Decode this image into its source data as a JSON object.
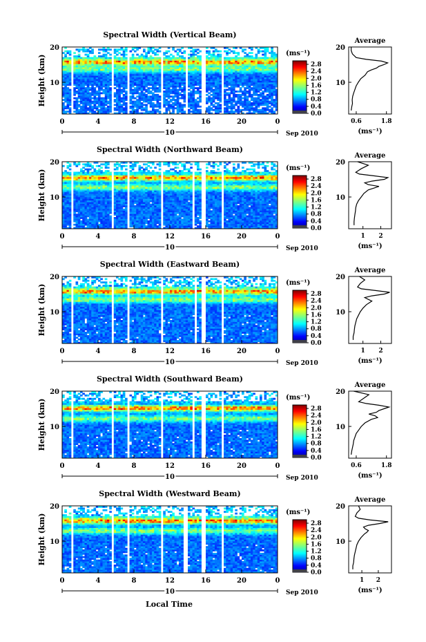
{
  "chart_data": [
    {
      "type": "heatmap",
      "title": "Spectral Width (Vertical Beam)",
      "xlabel": "",
      "ylabel": "Height (km)",
      "xlim": [
        0,
        24
      ],
      "ylim": [
        1,
        20
      ],
      "x_ticks": [
        "0",
        "4",
        "8",
        "12",
        "16",
        "20",
        "0"
      ],
      "y_ticks": [
        "20",
        "10"
      ],
      "date_day": "10",
      "date_label": "Sep 2010",
      "colorbar": {
        "unit": "(ms⁻¹)",
        "range": [
          0,
          3.0
        ],
        "ticks": [
          "2.8",
          "2.4",
          "2.0",
          "1.6",
          "1.2",
          "0.8",
          "0.4",
          "0.0"
        ]
      },
      "gaps_hours": [
        [
          1.0,
          1.3
        ],
        [
          5.5,
          5.8
        ],
        [
          7.3,
          7.6
        ],
        [
          10.9,
          11.2
        ],
        [
          13.7,
          14.0
        ],
        [
          15.6,
          15.9
        ],
        [
          17.7,
          18.0
        ]
      ],
      "band_heights_km": [
        15.8,
        13.8
      ],
      "profile": {
        "title": "Average",
        "xlabel": "(ms⁻¹)",
        "x_ticks": [
          "0.6",
          "1.8"
        ],
        "xlim": [
          0.3,
          2.0
        ],
        "heights": [
          2,
          3,
          4,
          5,
          6,
          7,
          8,
          9,
          10,
          11,
          12,
          12.5,
          13,
          13.5,
          14,
          14.5,
          15,
          15.5,
          16,
          16.5,
          17,
          18,
          19,
          20
        ],
        "values": [
          0.4,
          0.42,
          0.45,
          0.44,
          0.46,
          0.5,
          0.55,
          0.6,
          0.68,
          0.78,
          0.95,
          1.0,
          1.05,
          1.2,
          1.4,
          1.5,
          1.7,
          1.85,
          1.6,
          1.0,
          0.6,
          0.45,
          0.4,
          0.4
        ]
      }
    },
    {
      "type": "heatmap",
      "title": "Spectral Width (Northward Beam)",
      "xlabel": "",
      "ylabel": "Height (km)",
      "xlim": [
        0,
        24
      ],
      "ylim": [
        1,
        20
      ],
      "x_ticks": [
        "0",
        "4",
        "8",
        "12",
        "16",
        "20",
        "0"
      ],
      "y_ticks": [
        "20",
        "10"
      ],
      "date_day": "10",
      "date_label": "Sep 2010",
      "colorbar": {
        "unit": "(ms⁻¹)",
        "range": [
          0,
          3.0
        ],
        "ticks": [
          "2.8",
          "2.4",
          "2.0",
          "1.6",
          "1.2",
          "0.8",
          "0.4",
          "0.0"
        ]
      },
      "gaps_hours": [
        [
          1.0,
          1.3
        ],
        [
          5.5,
          5.8
        ],
        [
          7.3,
          7.6
        ],
        [
          10.9,
          11.2
        ],
        [
          14.4,
          14.7
        ],
        [
          15.6,
          15.9
        ],
        [
          17.7,
          18.0
        ]
      ],
      "band_heights_km": [
        15.5,
        12.8
      ],
      "profile": {
        "title": "Average",
        "xlabel": "(ms⁻¹)",
        "x_ticks": [
          "1",
          "2"
        ],
        "xlim": [
          0.2,
          2.6
        ],
        "heights": [
          2,
          3,
          4,
          5,
          6,
          7,
          8,
          9,
          10,
          11,
          12,
          12.5,
          13,
          13.5,
          14,
          14.5,
          15,
          15.5,
          16,
          16.5,
          17,
          18,
          19,
          20
        ],
        "values": [
          0.5,
          0.5,
          0.52,
          0.55,
          0.58,
          0.6,
          0.65,
          0.75,
          0.9,
          1.05,
          1.3,
          1.6,
          1.9,
          1.3,
          1.1,
          1.5,
          2.2,
          2.4,
          1.6,
          0.8,
          0.6,
          0.9,
          1.3,
          0.7
        ]
      }
    },
    {
      "type": "heatmap",
      "title": "Spectral Width (Eastward Beam)",
      "xlabel": "",
      "ylabel": "Height (km)",
      "xlim": [
        0,
        24
      ],
      "ylim": [
        1,
        20
      ],
      "x_ticks": [
        "0",
        "4",
        "8",
        "12",
        "16",
        "20",
        "0"
      ],
      "y_ticks": [
        "20",
        "10"
      ],
      "date_day": "10",
      "date_label": "Sep 2010",
      "colorbar": {
        "unit": "(ms⁻¹)",
        "range": [
          0,
          3.0
        ],
        "ticks": [
          "2.8",
          "2.4",
          "2.0",
          "1.6",
          "1.2",
          "0.8",
          "0.4",
          "0.0"
        ]
      },
      "gaps_hours": [
        [
          1.0,
          1.3
        ],
        [
          5.5,
          5.8
        ],
        [
          7.3,
          7.6
        ],
        [
          10.9,
          11.2
        ],
        [
          14.7,
          15.0
        ],
        [
          15.6,
          15.9
        ],
        [
          17.7,
          18.0
        ]
      ],
      "band_heights_km": [
        15.8,
        13.5
      ],
      "profile": {
        "title": "Average",
        "xlabel": "(ms⁻¹)",
        "x_ticks": [
          "1",
          "2"
        ],
        "xlim": [
          0.2,
          2.6
        ],
        "heights": [
          2,
          3,
          4,
          5,
          6,
          7,
          8,
          9,
          10,
          11,
          12,
          12.5,
          13,
          13.5,
          14,
          14.5,
          15,
          15.5,
          16,
          16.5,
          17,
          18,
          19,
          20
        ],
        "values": [
          0.45,
          0.45,
          0.5,
          0.52,
          0.55,
          0.6,
          0.65,
          0.75,
          0.85,
          1.0,
          1.2,
          1.35,
          1.5,
          1.3,
          1.1,
          1.5,
          2.2,
          2.5,
          1.7,
          0.9,
          0.7,
          0.85,
          1.1,
          0.8
        ]
      }
    },
    {
      "type": "heatmap",
      "title": "Spectral Width (Southward Beam)",
      "xlabel": "",
      "ylabel": "Height (km)",
      "xlim": [
        0,
        24
      ],
      "ylim": [
        1,
        20
      ],
      "x_ticks": [
        "0",
        "4",
        "8",
        "12",
        "16",
        "20",
        "0"
      ],
      "y_ticks": [
        "20",
        "10"
      ],
      "date_day": "10",
      "date_label": "Sep 2010",
      "colorbar": {
        "unit": "(ms⁻¹)",
        "range": [
          0,
          3.0
        ],
        "ticks": [
          "2.8",
          "2.4",
          "2.0",
          "1.6",
          "1.2",
          "0.8",
          "0.4",
          "0.0"
        ]
      },
      "gaps_hours": [
        [
          1.0,
          1.3
        ],
        [
          5.5,
          5.8
        ],
        [
          7.3,
          7.6
        ],
        [
          10.9,
          11.2
        ],
        [
          14.4,
          14.7
        ],
        [
          15.6,
          15.9
        ],
        [
          17.7,
          18.0
        ]
      ],
      "band_heights_km": [
        15.2,
        12.3
      ],
      "profile": {
        "title": "Average",
        "xlabel": "(ms⁻¹)",
        "x_ticks": [
          "0.6",
          "1.8"
        ],
        "xlim": [
          0.3,
          2.0
        ],
        "heights": [
          2,
          3,
          4,
          5,
          6,
          7,
          8,
          9,
          10,
          11,
          12,
          12.5,
          13,
          13.5,
          14,
          14.5,
          15,
          15.5,
          16,
          16.5,
          17,
          18,
          19,
          20
        ],
        "values": [
          0.4,
          0.42,
          0.45,
          0.48,
          0.5,
          0.55,
          0.6,
          0.7,
          0.8,
          0.95,
          1.2,
          1.45,
          1.35,
          1.1,
          1.4,
          1.5,
          1.7,
          1.9,
          1.5,
          1.0,
          0.7,
          0.9,
          1.1,
          0.5
        ]
      }
    },
    {
      "type": "heatmap",
      "title": "Spectral Width (Westward Beam)",
      "xlabel": "Local Time",
      "ylabel": "Height (km)",
      "xlim": [
        0,
        24
      ],
      "ylim": [
        1,
        20
      ],
      "x_ticks": [
        "0",
        "4",
        "8",
        "12",
        "16",
        "20",
        "0"
      ],
      "y_ticks": [
        "20",
        "10"
      ],
      "date_day": "10",
      "date_label": "Sep 2010",
      "colorbar": {
        "unit": "(ms⁻¹)",
        "range": [
          0,
          3.0
        ],
        "ticks": [
          "2.8",
          "2.4",
          "2.0",
          "1.6",
          "1.2",
          "0.8",
          "0.4",
          "0.0"
        ]
      },
      "gaps_hours": [
        [
          1.0,
          1.3
        ],
        [
          5.5,
          5.8
        ],
        [
          7.3,
          7.6
        ],
        [
          10.9,
          11.2
        ],
        [
          13.6,
          13.9
        ],
        [
          15.6,
          15.9
        ],
        [
          17.7,
          18.0
        ]
      ],
      "band_heights_km": [
        15.8,
        13.0
      ],
      "profile": {
        "title": "Average",
        "xlabel": "(ms⁻¹)",
        "x_ticks": [
          "1",
          "2"
        ],
        "xlim": [
          0.2,
          2.8
        ],
        "heights": [
          2,
          3,
          4,
          5,
          6,
          7,
          8,
          9,
          10,
          11,
          12,
          12.5,
          13,
          13.5,
          14,
          14.5,
          15,
          15.5,
          16,
          16.5,
          17,
          18,
          19,
          20
        ],
        "values": [
          0.45,
          0.45,
          0.5,
          0.52,
          0.55,
          0.6,
          0.65,
          0.7,
          0.8,
          0.95,
          1.15,
          1.3,
          1.4,
          1.2,
          1.1,
          1.4,
          2.1,
          2.6,
          1.5,
          0.8,
          0.6,
          0.7,
          0.9,
          0.8
        ]
      }
    }
  ]
}
